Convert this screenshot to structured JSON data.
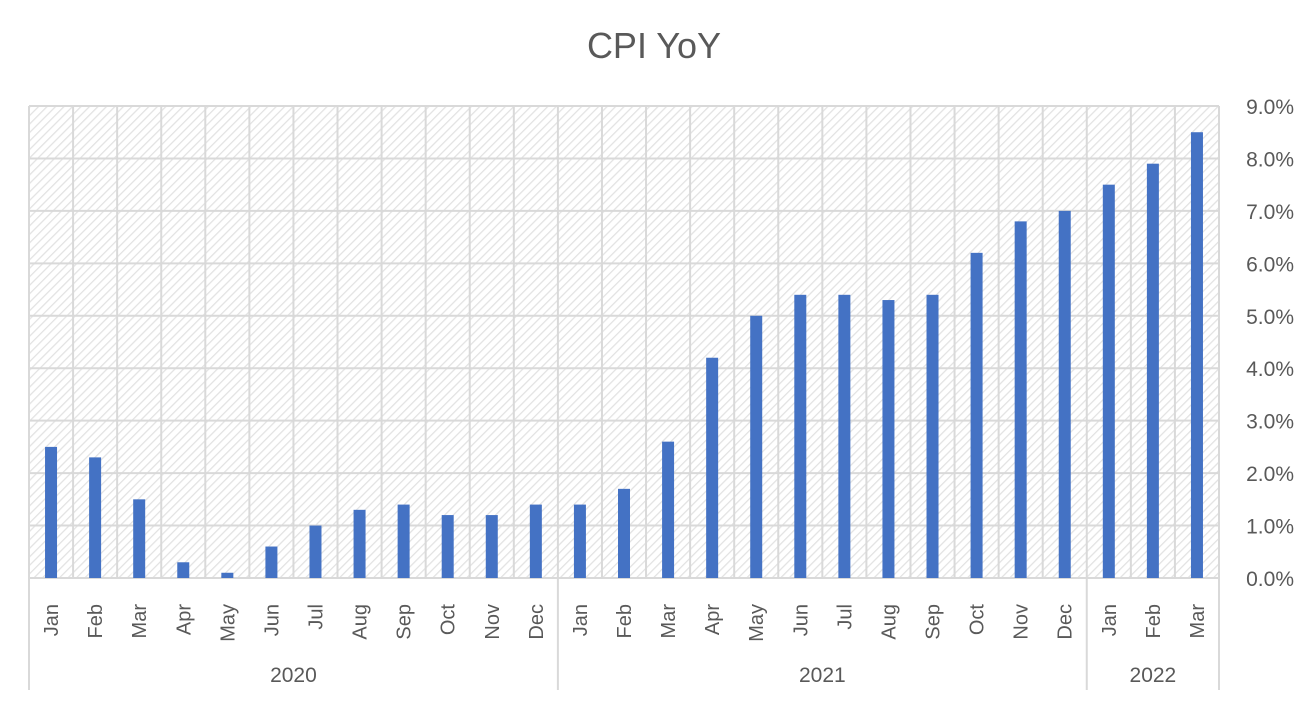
{
  "chart_data": {
    "type": "bar",
    "title": "CPI YoY",
    "xlabel": "",
    "ylabel": "",
    "ylim": [
      0,
      9
    ],
    "yticks": [
      "0.0%",
      "1.0%",
      "2.0%",
      "3.0%",
      "4.0%",
      "5.0%",
      "6.0%",
      "7.0%",
      "8.0%",
      "9.0%"
    ],
    "y_axis_position": "right",
    "grid": true,
    "legend": "none",
    "bar_color": "#4472C4",
    "categories": [
      "Jan",
      "Feb",
      "Mar",
      "Apr",
      "May",
      "Jun",
      "Jul",
      "Aug",
      "Sep",
      "Oct",
      "Nov",
      "Dec",
      "Jan",
      "Feb",
      "Mar",
      "Apr",
      "May",
      "Jun",
      "Jul",
      "Aug",
      "Sep",
      "Oct",
      "Nov",
      "Dec",
      "Jan",
      "Feb",
      "Mar"
    ],
    "groups": [
      {
        "label": "2020",
        "count": 12
      },
      {
        "label": "2021",
        "count": 12
      },
      {
        "label": "2022",
        "count": 3
      }
    ],
    "values": [
      2.5,
      2.3,
      1.5,
      0.3,
      0.1,
      0.6,
      1.0,
      1.3,
      1.4,
      1.2,
      1.2,
      1.4,
      1.4,
      1.7,
      2.6,
      4.2,
      5.0,
      5.4,
      5.4,
      5.3,
      5.4,
      6.2,
      6.8,
      7.0,
      7.5,
      7.9,
      8.5
    ],
    "unit": "%"
  }
}
